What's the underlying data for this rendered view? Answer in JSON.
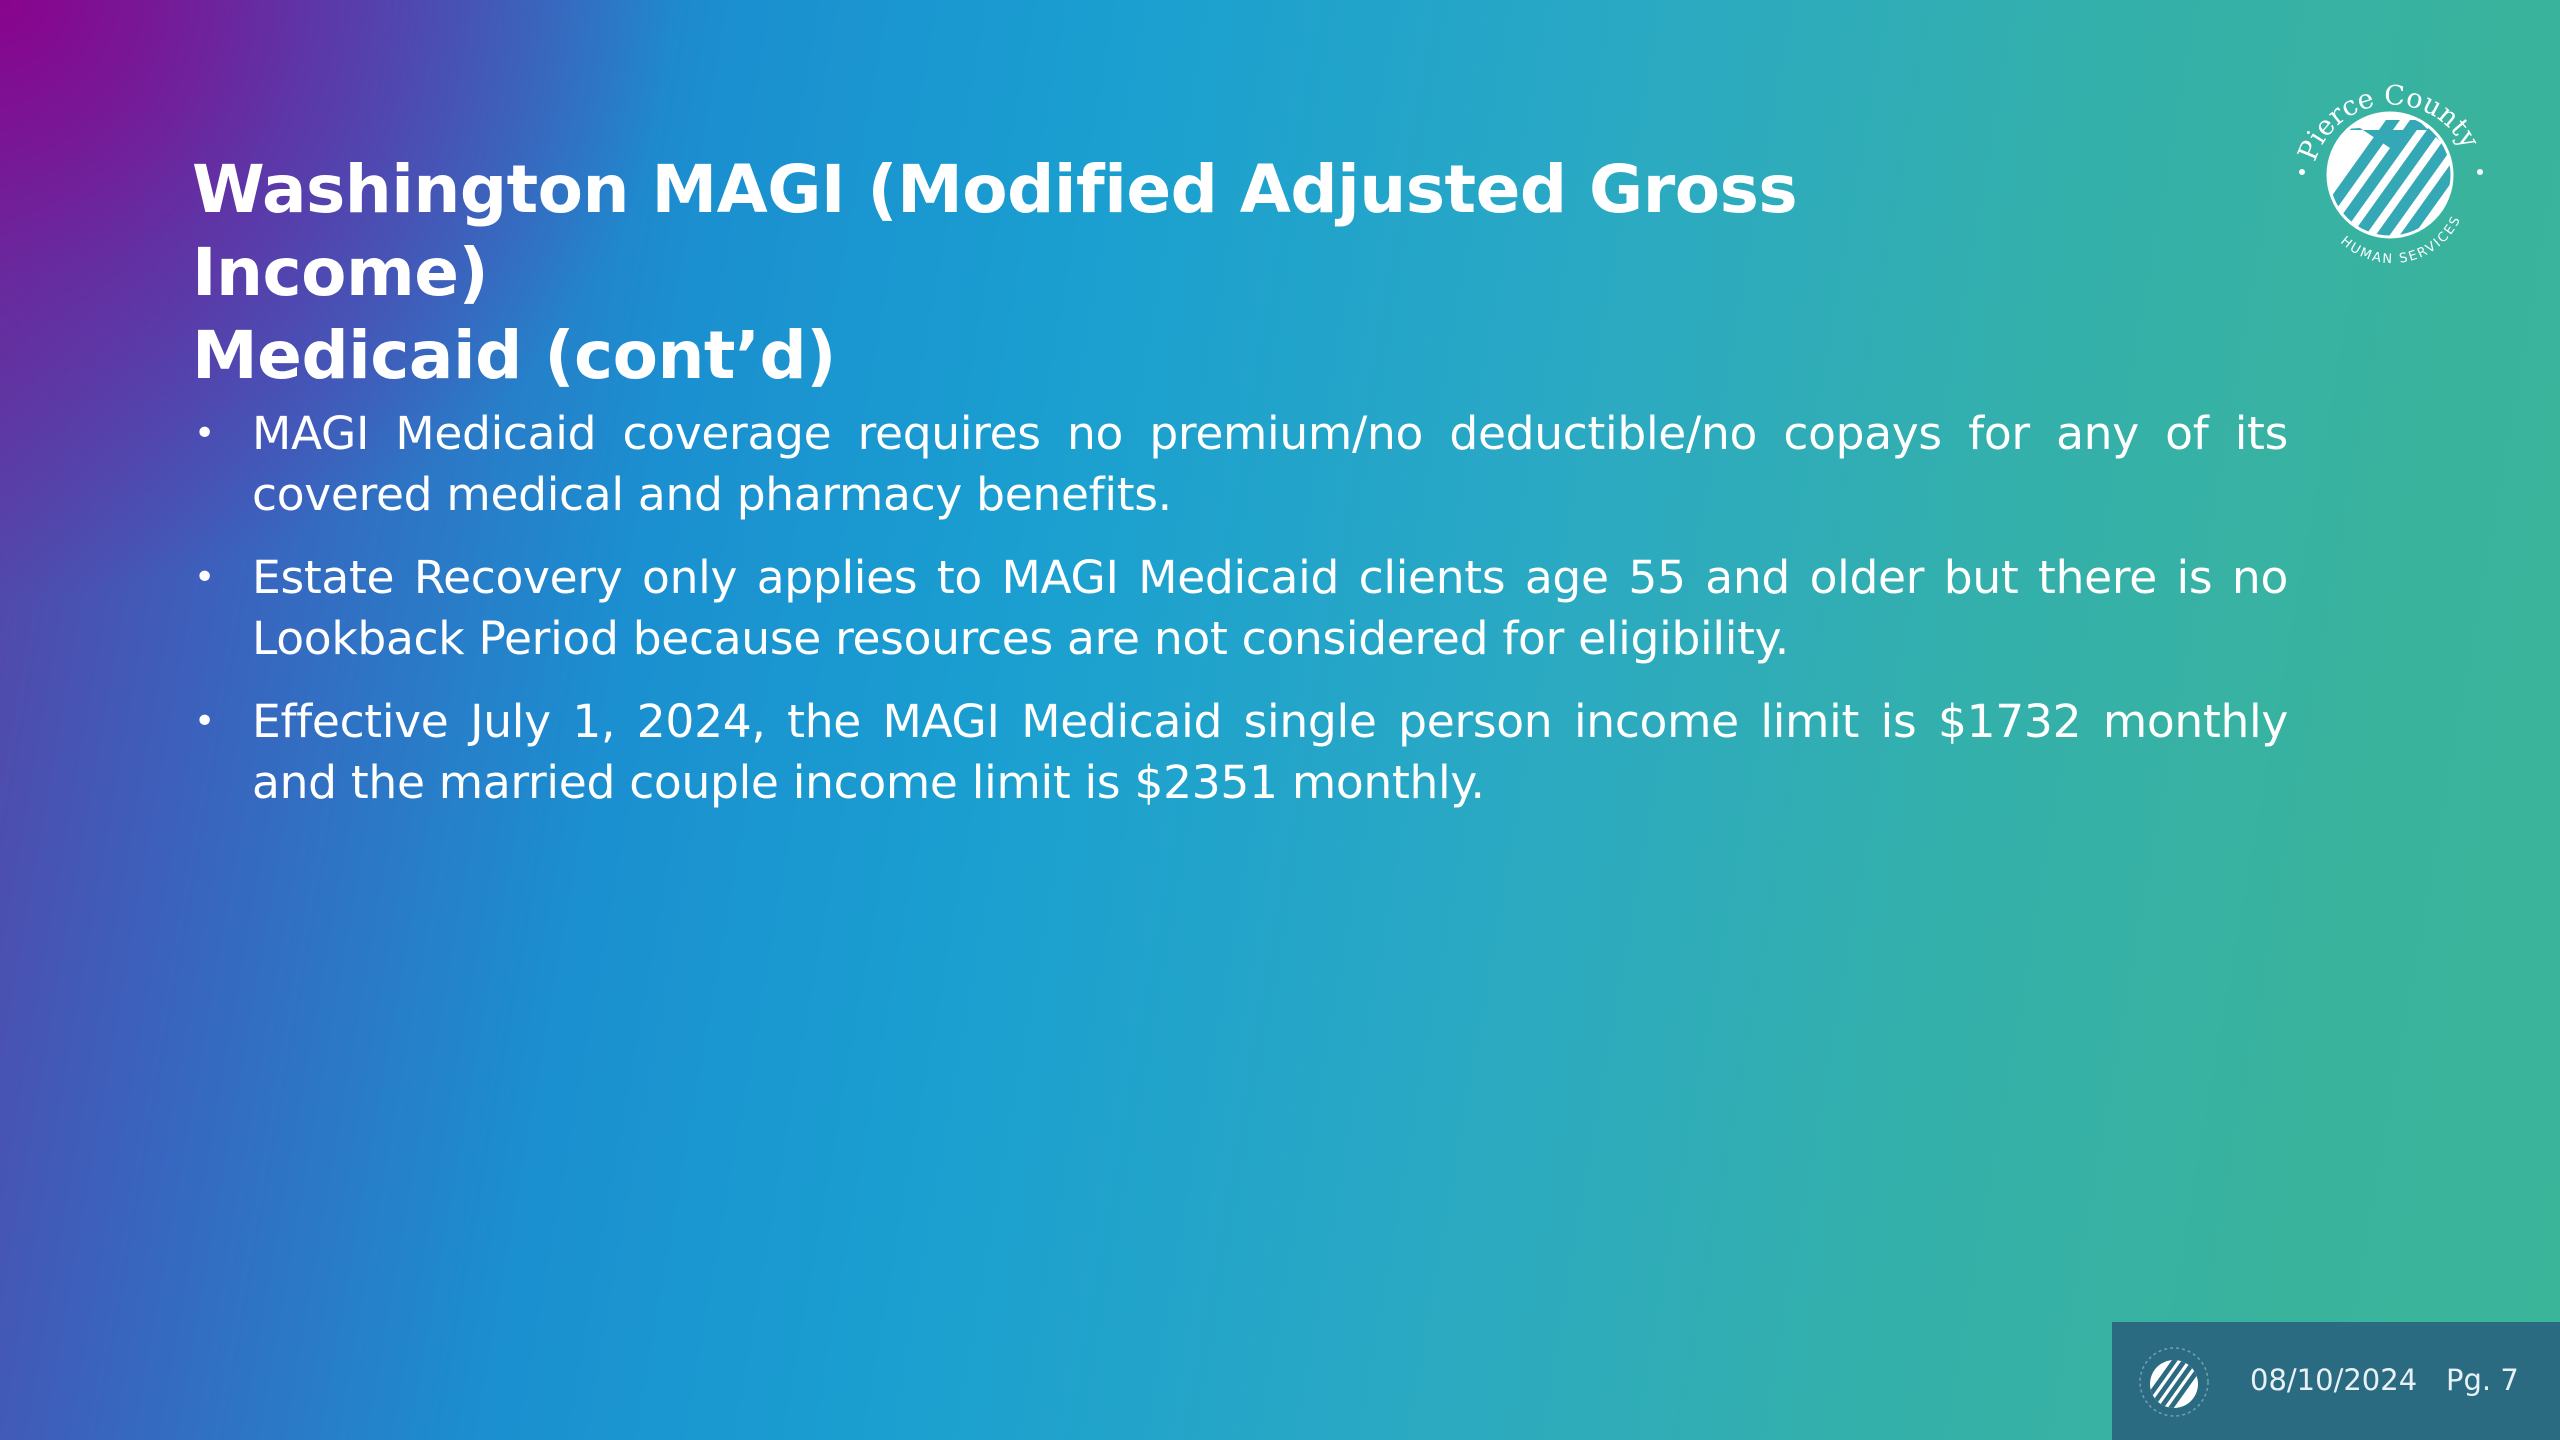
{
  "slide": {
    "title_line1": "Washington MAGI (Modified Adjusted Gross Income)",
    "title_line2": "Medicaid (cont’d)",
    "bullets": [
      "MAGI Medicaid coverage requires no premium/no deductible/no copays for any of its covered medical and pharmacy benefits.",
      "Estate Recovery only applies to  MAGI Medicaid clients age 55 and older but there is no Lookback Period because resources are not considered for eligibility.",
      "Effective July 1, 2024, the MAGI Medicaid single person income limit is $1732 monthly and the married couple income limit is $2351 monthly."
    ],
    "bullet_symbol": "•"
  },
  "logo": {
    "icon": "pierce-county-logo-icon",
    "text_top": "Pierce County",
    "text_bottom": "HUMAN SERVICES"
  },
  "footer": {
    "date": "08/10/2024",
    "page": "Pg. 7",
    "icon": "pierce-county-logo-small-icon"
  },
  "colors": {
    "gradient_start": "#8a0a8c",
    "gradient_mid": "#1a9fd0",
    "gradient_end": "#3ab59a",
    "footer_bg": "#2b6b82",
    "text": "#ffffff"
  }
}
